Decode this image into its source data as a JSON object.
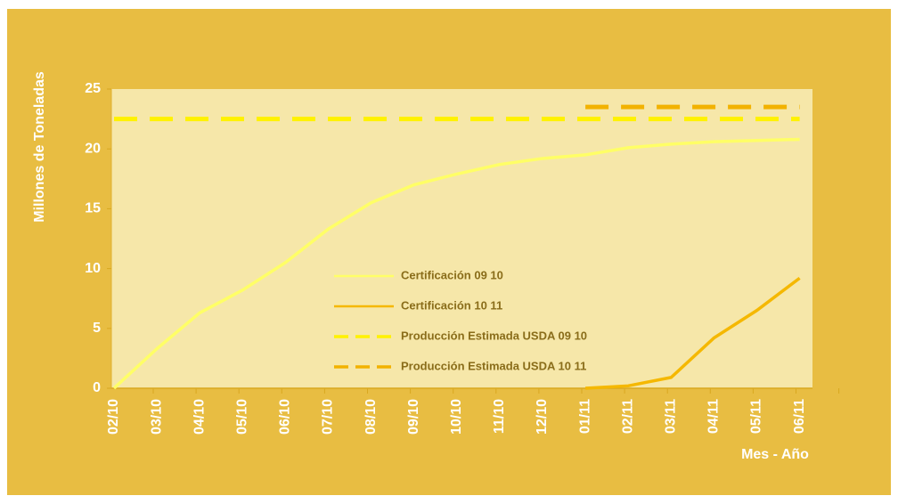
{
  "chart_data": {
    "type": "line",
    "x_label": "Mes - Año",
    "y_label": "Millones de Toneladas",
    "categories": [
      "02/10",
      "03/10",
      "04/10",
      "05/10",
      "06/10",
      "07/10",
      "08/10",
      "09/10",
      "10/10",
      "11/10",
      "12/10",
      "01/11",
      "02/11",
      "03/11",
      "04/11",
      "05/11",
      "06/11"
    ],
    "series": [
      {
        "name": "Certificación 09 10",
        "color": "#ffff66",
        "dashed": false,
        "values": [
          0,
          3.3,
          6.3,
          8.2,
          10.5,
          13.3,
          15.5,
          17,
          17.9,
          18.7,
          19.2,
          19.5,
          20.1,
          20.4,
          20.6,
          20.7,
          20.8
        ]
      },
      {
        "name": "Certificación 10 11",
        "color": "#f5b800",
        "dashed": false,
        "values": [
          null,
          null,
          null,
          null,
          null,
          null,
          null,
          null,
          null,
          null,
          null,
          0,
          0.2,
          0.9,
          4.2,
          6.5,
          9.2
        ]
      },
      {
        "name": "Producción Estimada USDA 09 10",
        "color": "#fff200",
        "dashed": true,
        "values": [
          22.5,
          22.5,
          22.5,
          22.5,
          22.5,
          22.5,
          22.5,
          22.5,
          22.5,
          22.5,
          22.5,
          22.5,
          22.5,
          22.5,
          22.5,
          22.5,
          22.5
        ]
      },
      {
        "name": "Producción Estimada USDA 10 11",
        "color": "#f2b200",
        "dashed": true,
        "values": [
          null,
          null,
          null,
          null,
          null,
          null,
          null,
          null,
          null,
          null,
          null,
          23.5,
          23.5,
          23.5,
          23.5,
          23.5,
          23.5
        ]
      }
    ],
    "ylim": [
      0,
      25
    ],
    "yticks": [
      0,
      5,
      10,
      15,
      20,
      25
    ],
    "grid": false,
    "legend": "center"
  }
}
